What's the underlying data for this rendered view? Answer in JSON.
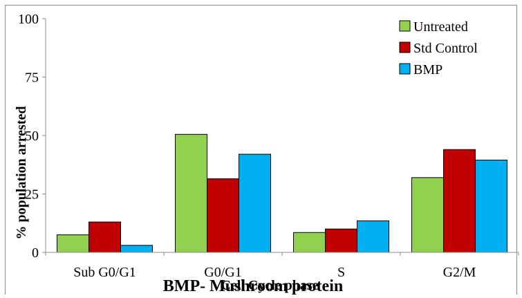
{
  "chart_data": {
    "type": "bar",
    "title": "",
    "xlabel": "Cell Cycle phase",
    "ylabel": "% population arrested",
    "caption": "BMP- Mushroom protein",
    "categories": [
      "Sub G0/G1",
      "G0/G1",
      "S",
      "G2/M"
    ],
    "ylim": [
      0,
      100
    ],
    "yticks": [
      "0",
      "25",
      "50",
      "75",
      "100"
    ],
    "grid": false,
    "legend_position": "top-right",
    "series": [
      {
        "name": "Untreated",
        "color": "#92D050",
        "values": [
          7.5,
          50.5,
          8.5,
          32
        ]
      },
      {
        "name": "Std Control",
        "color": "#C00000",
        "values": [
          13,
          31.5,
          10,
          44
        ]
      },
      {
        "name": "BMP",
        "color": "#00B0F0",
        "values": [
          3,
          42,
          13.5,
          39.5
        ]
      }
    ]
  }
}
